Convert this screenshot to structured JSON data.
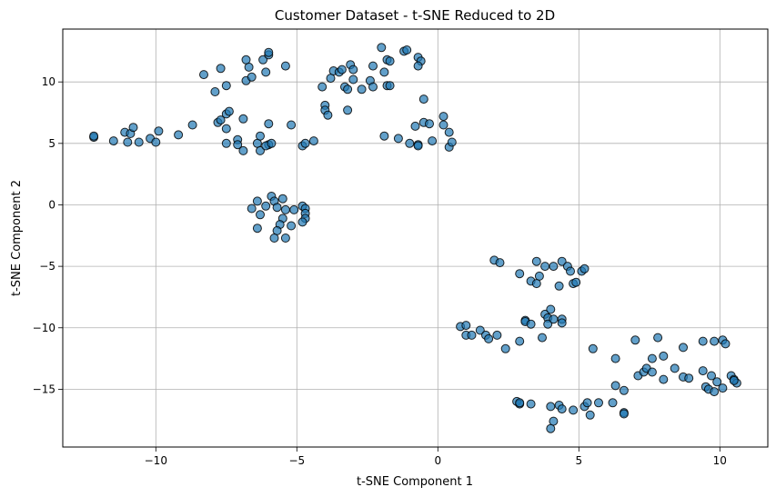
{
  "chart_data": {
    "type": "scatter",
    "title": "Customer Dataset - t-SNE Reduced to 2D",
    "xlabel": "t-SNE Component 1",
    "ylabel": "t-SNE Component 2",
    "xlim": [
      -13.3,
      11.7
    ],
    "ylim": [
      -19.7,
      14.3
    ],
    "xticks": [
      -10,
      -5,
      0,
      5,
      10
    ],
    "yticks": [
      -15,
      -10,
      -5,
      0,
      5,
      10
    ],
    "xtick_labels": [
      "−10",
      "−5",
      "0",
      "5",
      "10"
    ],
    "ytick_labels": [
      "−15",
      "−10",
      "−5",
      "0",
      "5",
      "10"
    ],
    "grid": true,
    "marker_color": "#1f77b4",
    "marker_edge_color": "#000000",
    "marker_alpha": 0.7,
    "points": [
      [
        -12.2,
        5.5
      ],
      [
        -12.2,
        5.6
      ],
      [
        -11.5,
        5.2
      ],
      [
        -11.1,
        5.9
      ],
      [
        -10.9,
        5.8
      ],
      [
        -10.8,
        6.3
      ],
      [
        -11.0,
        5.1
      ],
      [
        -10.6,
        5.1
      ],
      [
        -10.2,
        5.4
      ],
      [
        -9.9,
        6.0
      ],
      [
        -10.0,
        5.1
      ],
      [
        -9.2,
        5.7
      ],
      [
        -8.7,
        6.5
      ],
      [
        -8.3,
        10.6
      ],
      [
        -7.9,
        9.2
      ],
      [
        -7.7,
        11.1
      ],
      [
        -7.5,
        9.7
      ],
      [
        -7.8,
        6.7
      ],
      [
        -7.7,
        6.9
      ],
      [
        -7.5,
        7.4
      ],
      [
        -7.4,
        7.6
      ],
      [
        -7.5,
        6.2
      ],
      [
        -7.1,
        5.3
      ],
      [
        -7.5,
        5.0
      ],
      [
        -7.1,
        4.9
      ],
      [
        -6.9,
        4.4
      ],
      [
        -6.9,
        7.0
      ],
      [
        -6.8,
        10.1
      ],
      [
        -6.7,
        11.2
      ],
      [
        -6.6,
        10.4
      ],
      [
        -6.8,
        11.8
      ],
      [
        -6.4,
        5.0
      ],
      [
        -6.3,
        5.6
      ],
      [
        -6.3,
        4.4
      ],
      [
        -6.0,
        4.9
      ],
      [
        -6.1,
        4.8
      ],
      [
        -5.9,
        5.0
      ],
      [
        -6.0,
        6.6
      ],
      [
        -6.1,
        10.8
      ],
      [
        -6.2,
        11.8
      ],
      [
        -6.0,
        12.2
      ],
      [
        -6.0,
        12.4
      ],
      [
        -5.4,
        11.3
      ],
      [
        -5.2,
        6.5
      ],
      [
        -4.8,
        4.8
      ],
      [
        -4.7,
        5.0
      ],
      [
        -4.4,
        5.2
      ],
      [
        -6.6,
        -0.3
      ],
      [
        -6.4,
        0.3
      ],
      [
        -6.3,
        -0.8
      ],
      [
        -6.4,
        -1.9
      ],
      [
        -6.1,
        -0.1
      ],
      [
        -5.9,
        0.7
      ],
      [
        -5.8,
        0.3
      ],
      [
        -5.7,
        -0.2
      ],
      [
        -5.5,
        0.5
      ],
      [
        -5.4,
        -0.4
      ],
      [
        -5.5,
        -1.1
      ],
      [
        -5.6,
        -1.6
      ],
      [
        -5.7,
        -2.1
      ],
      [
        -5.8,
        -2.7
      ],
      [
        -5.4,
        -2.7
      ],
      [
        -5.2,
        -1.7
      ],
      [
        -5.1,
        -0.4
      ],
      [
        -4.8,
        -0.1
      ],
      [
        -4.7,
        -0.3
      ],
      [
        -4.7,
        -0.7
      ],
      [
        -4.7,
        -1.1
      ],
      [
        -4.8,
        -1.4
      ],
      [
        -4.1,
        9.6
      ],
      [
        -4.0,
        8.1
      ],
      [
        -4.0,
        7.7
      ],
      [
        -3.9,
        7.3
      ],
      [
        -3.8,
        10.3
      ],
      [
        -3.7,
        10.9
      ],
      [
        -3.5,
        10.8
      ],
      [
        -3.4,
        11.0
      ],
      [
        -3.3,
        9.6
      ],
      [
        -3.2,
        9.4
      ],
      [
        -3.1,
        11.4
      ],
      [
        -3.0,
        11.0
      ],
      [
        -3.0,
        10.2
      ],
      [
        -3.2,
        7.7
      ],
      [
        -2.7,
        9.4
      ],
      [
        -2.4,
        10.1
      ],
      [
        -2.3,
        9.6
      ],
      [
        -2.3,
        11.3
      ],
      [
        -2.0,
        12.8
      ],
      [
        -1.9,
        5.6
      ],
      [
        -1.8,
        9.7
      ],
      [
        -1.8,
        11.8
      ],
      [
        -1.7,
        11.7
      ],
      [
        -1.9,
        10.8
      ],
      [
        -1.7,
        9.7
      ],
      [
        -1.4,
        5.4
      ],
      [
        -1.2,
        12.5
      ],
      [
        -1.1,
        12.6
      ],
      [
        -1.0,
        5.0
      ],
      [
        -0.7,
        4.9
      ],
      [
        -0.8,
        6.4
      ],
      [
        -0.7,
        4.8
      ],
      [
        -0.7,
        12.0
      ],
      [
        -0.6,
        11.7
      ],
      [
        -0.7,
        11.3
      ],
      [
        -0.5,
        8.6
      ],
      [
        -0.5,
        6.7
      ],
      [
        -0.3,
        6.6
      ],
      [
        -0.2,
        5.2
      ],
      [
        0.2,
        6.5
      ],
      [
        0.2,
        7.2
      ],
      [
        0.4,
        4.7
      ],
      [
        0.4,
        5.9
      ],
      [
        0.5,
        5.1
      ],
      [
        2.0,
        -4.5
      ],
      [
        2.2,
        -4.7
      ],
      [
        2.9,
        -5.6
      ],
      [
        3.3,
        -6.2
      ],
      [
        3.5,
        -4.6
      ],
      [
        3.6,
        -5.8
      ],
      [
        3.5,
        -6.4
      ],
      [
        3.8,
        -5.0
      ],
      [
        4.1,
        -5.0
      ],
      [
        4.3,
        -6.6
      ],
      [
        4.4,
        -4.6
      ],
      [
        4.6,
        -5.0
      ],
      [
        4.7,
        -5.4
      ],
      [
        4.8,
        -6.4
      ],
      [
        4.9,
        -6.3
      ],
      [
        5.1,
        -5.4
      ],
      [
        5.2,
        -5.2
      ],
      [
        3.8,
        -8.9
      ],
      [
        3.9,
        -9.2
      ],
      [
        4.0,
        -8.5
      ],
      [
        4.4,
        -9.3
      ],
      [
        4.4,
        -9.6
      ],
      [
        3.9,
        -9.7
      ],
      [
        4.1,
        -9.3
      ],
      [
        3.1,
        -9.4
      ],
      [
        3.1,
        -9.5
      ],
      [
        3.3,
        -9.7
      ],
      [
        3.7,
        -10.8
      ],
      [
        0.8,
        -9.9
      ],
      [
        1.0,
        -10.6
      ],
      [
        1.0,
        -9.8
      ],
      [
        1.2,
        -10.6
      ],
      [
        1.5,
        -10.2
      ],
      [
        1.7,
        -10.6
      ],
      [
        1.8,
        -10.9
      ],
      [
        2.1,
        -10.6
      ],
      [
        2.4,
        -11.7
      ],
      [
        2.9,
        -11.1
      ],
      [
        2.8,
        -16.0
      ],
      [
        2.9,
        -16.2
      ],
      [
        2.9,
        -16.1
      ],
      [
        3.3,
        -16.2
      ],
      [
        4.0,
        -16.4
      ],
      [
        4.0,
        -18.2
      ],
      [
        4.1,
        -17.6
      ],
      [
        4.3,
        -16.3
      ],
      [
        4.4,
        -16.6
      ],
      [
        4.8,
        -16.7
      ],
      [
        5.2,
        -16.4
      ],
      [
        5.3,
        -16.1
      ],
      [
        5.4,
        -17.1
      ],
      [
        5.5,
        -11.7
      ],
      [
        5.7,
        -16.1
      ],
      [
        6.2,
        -16.1
      ],
      [
        6.3,
        -14.7
      ],
      [
        6.3,
        -12.5
      ],
      [
        6.6,
        -16.9
      ],
      [
        6.6,
        -17.0
      ],
      [
        6.6,
        -15.1
      ],
      [
        7.0,
        -11.0
      ],
      [
        7.1,
        -13.9
      ],
      [
        7.3,
        -13.6
      ],
      [
        7.4,
        -13.3
      ],
      [
        7.6,
        -12.5
      ],
      [
        7.6,
        -13.6
      ],
      [
        7.8,
        -10.8
      ],
      [
        8.0,
        -14.2
      ],
      [
        8.0,
        -12.3
      ],
      [
        8.4,
        -13.3
      ],
      [
        8.7,
        -11.6
      ],
      [
        8.7,
        -14.0
      ],
      [
        8.9,
        -14.1
      ],
      [
        9.4,
        -11.1
      ],
      [
        9.4,
        -13.5
      ],
      [
        9.5,
        -14.8
      ],
      [
        9.6,
        -15.0
      ],
      [
        9.7,
        -13.9
      ],
      [
        9.8,
        -15.2
      ],
      [
        9.8,
        -11.1
      ],
      [
        9.9,
        -14.4
      ],
      [
        10.1,
        -11.0
      ],
      [
        10.1,
        -14.9
      ],
      [
        10.2,
        -11.3
      ],
      [
        10.4,
        -13.9
      ],
      [
        10.5,
        -14.2
      ],
      [
        10.6,
        -14.5
      ],
      [
        10.5,
        -14.3
      ]
    ]
  }
}
